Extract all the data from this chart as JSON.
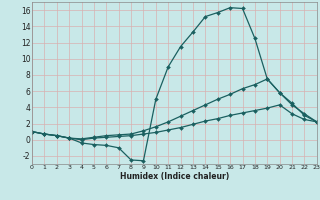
{
  "title": "",
  "xlabel": "Humidex (Indice chaleur)",
  "ylabel": "",
  "bg_color": "#c8e8e8",
  "line_color": "#1a6060",
  "grid_color": "#b8d8d8",
  "x_values": [
    0,
    1,
    2,
    3,
    4,
    5,
    6,
    7,
    8,
    9,
    10,
    11,
    12,
    13,
    14,
    15,
    16,
    17,
    18,
    19,
    20,
    21,
    22,
    23
  ],
  "line1": [
    1.0,
    0.7,
    0.5,
    0.2,
    -0.4,
    -0.6,
    -0.7,
    -1.0,
    -2.5,
    -2.6,
    5.0,
    9.0,
    11.5,
    13.3,
    15.2,
    15.7,
    16.3,
    16.2,
    12.5,
    7.5,
    5.8,
    4.5,
    3.0,
    2.2
  ],
  "line2": [
    1.0,
    0.7,
    0.5,
    0.2,
    0.1,
    0.3,
    0.5,
    0.6,
    0.7,
    1.1,
    1.6,
    2.2,
    2.9,
    3.6,
    4.3,
    5.0,
    5.6,
    6.3,
    6.8,
    7.5,
    5.8,
    4.3,
    3.2,
    2.2
  ],
  "line3": [
    1.0,
    0.7,
    0.5,
    0.2,
    0.0,
    0.2,
    0.3,
    0.4,
    0.5,
    0.7,
    0.9,
    1.2,
    1.5,
    1.9,
    2.3,
    2.6,
    3.0,
    3.3,
    3.6,
    3.9,
    4.3,
    3.2,
    2.5,
    2.2
  ],
  "ylim": [
    -3.0,
    17.0
  ],
  "xlim": [
    0,
    23
  ],
  "yticks": [
    -2,
    0,
    2,
    4,
    6,
    8,
    10,
    12,
    14,
    16
  ],
  "xticks": [
    0,
    1,
    2,
    3,
    4,
    5,
    6,
    7,
    8,
    9,
    10,
    11,
    12,
    13,
    14,
    15,
    16,
    17,
    18,
    19,
    20,
    21,
    22,
    23
  ],
  "marker": "D",
  "markersize": 2.0,
  "linewidth": 0.9
}
